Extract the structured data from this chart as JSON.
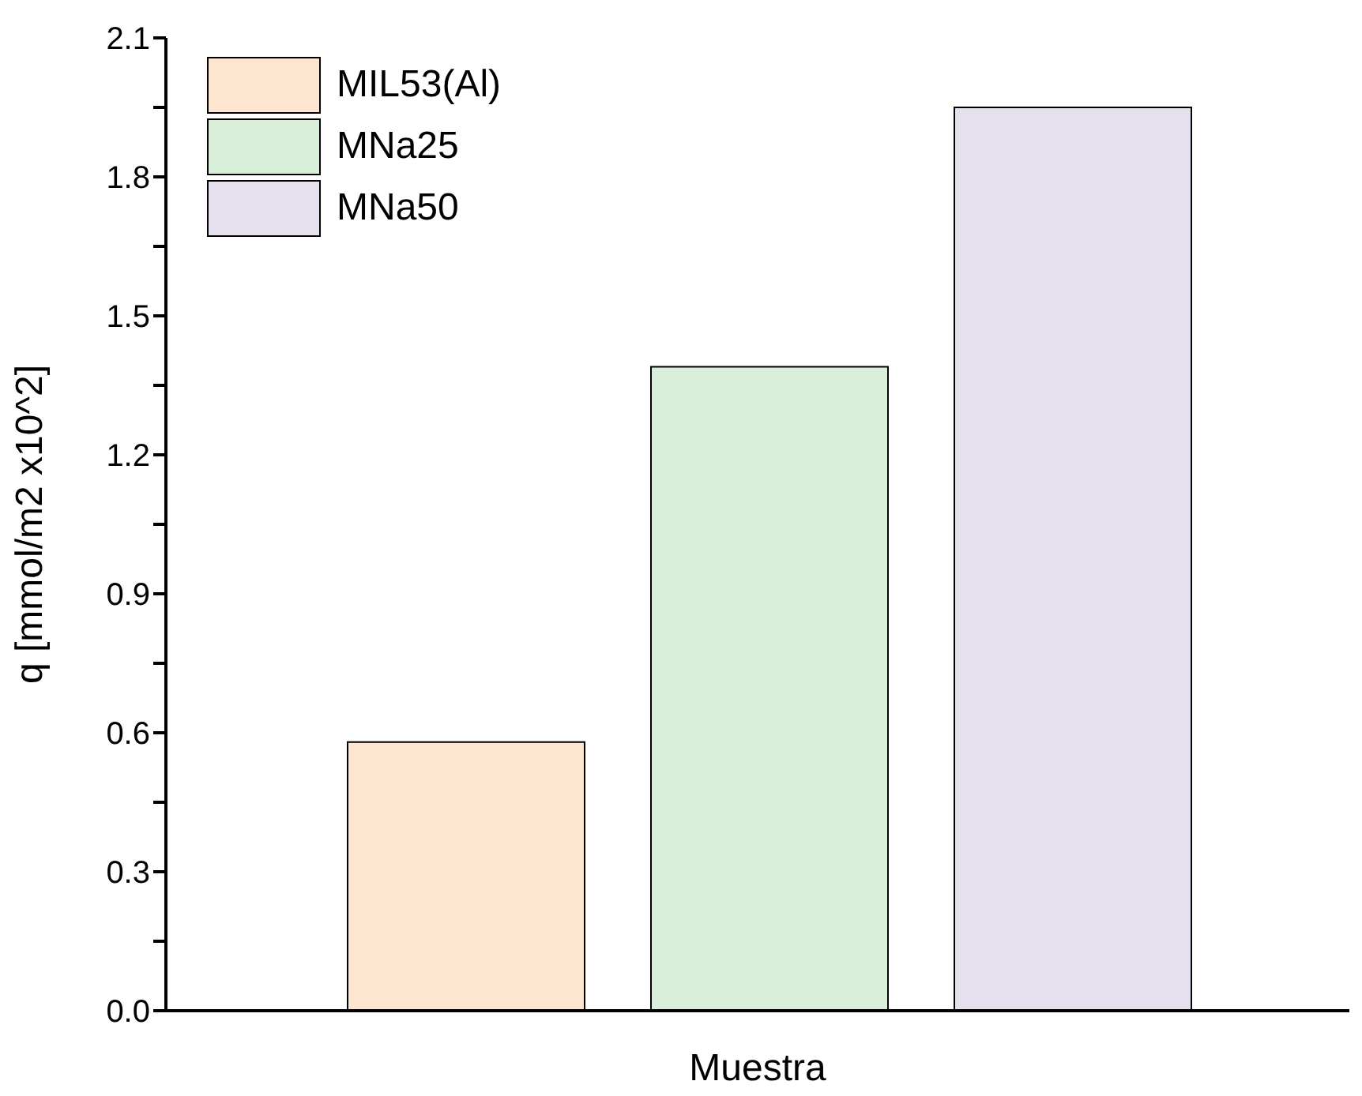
{
  "chart_data": {
    "type": "bar",
    "xlabel": "Muestra",
    "ylabel": "q [mmol/m2 x10^2]",
    "categories": [
      null,
      null,
      null
    ],
    "series": [
      {
        "name": "MIL53(Al)",
        "color": "#fde5d0",
        "values": [
          0.58,
          null,
          null
        ]
      },
      {
        "name": "MNa25",
        "color": "#daefda",
        "values": [
          null,
          1.39,
          null
        ]
      },
      {
        "name": "MNa50",
        "color": "#e5dfee",
        "values": [
          null,
          null,
          1.95
        ]
      }
    ],
    "ylim": [
      0,
      2.1
    ],
    "yticks": [
      {
        "value": 0,
        "label": "0.0"
      },
      {
        "value": 0.15,
        "label": null
      },
      0.3,
      {
        "value": 0.45,
        "label": null
      },
      0.6,
      {
        "value": 0.75,
        "label": null
      },
      0.9,
      {
        "value": 1.05,
        "label": null
      },
      1.2,
      {
        "value": 1.35,
        "label": null
      },
      1.5,
      {
        "value": 1.65,
        "label": null
      },
      1.8,
      {
        "value": 1.95,
        "label": null
      },
      2.1
    ],
    "tick_labels": "y",
    "grid": false,
    "legend": "top left"
  }
}
